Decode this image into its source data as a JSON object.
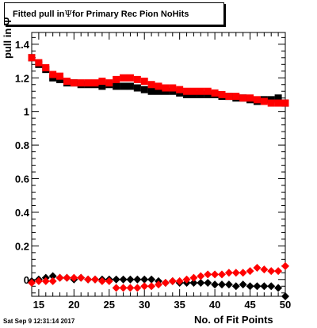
{
  "title": {
    "prefix": "Fitted pull in ",
    "symbol": "Ψ",
    "suffix": " for Primary Rec Pion NoHits"
  },
  "datestamp": "Sat Sep  9 12:31:14 2017",
  "chart_data": {
    "type": "scatter",
    "title": "Fitted pull in Ψ for Primary Rec Pion NoHits",
    "xlabel": "No. of Fit Points",
    "ylabel": "pull in Ψ",
    "xlim": [
      14,
      50
    ],
    "ylim": [
      -0.1,
      1.47
    ],
    "x_ticks": [
      15,
      20,
      25,
      30,
      35,
      40,
      45,
      50
    ],
    "y_ticks": [
      0,
      0.2,
      0.4,
      0.6,
      0.8,
      1,
      1.2,
      1.4
    ],
    "y_tick_labels": [
      "0",
      "0.2",
      "0.4",
      "0.6",
      "0.8",
      "1",
      "1.2",
      "1.4"
    ],
    "grid": false,
    "legend": "none",
    "series": [
      {
        "color": "#000000",
        "marker": "square",
        "x": [
          14,
          15,
          16,
          17,
          18,
          19,
          20,
          21,
          22,
          23,
          24,
          25,
          26,
          27,
          28,
          29,
          30,
          31,
          32,
          33,
          34,
          35,
          36,
          37,
          38,
          39,
          40,
          41,
          42,
          43,
          44,
          45,
          46,
          47,
          48,
          49,
          50
        ],
        "y": [
          1.32,
          1.28,
          1.25,
          1.2,
          1.19,
          1.17,
          1.17,
          1.16,
          1.16,
          1.16,
          1.15,
          1.16,
          1.15,
          1.15,
          1.15,
          1.14,
          1.13,
          1.12,
          1.12,
          1.12,
          1.12,
          1.11,
          1.1,
          1.1,
          1.1,
          1.1,
          1.1,
          1.09,
          1.09,
          1.08,
          1.08,
          1.07,
          1.06,
          1.07,
          1.07,
          1.08,
          1.05
        ]
      },
      {
        "color": "#ff0000",
        "marker": "square",
        "x": [
          14,
          15,
          16,
          17,
          18,
          19,
          20,
          21,
          22,
          23,
          24,
          25,
          26,
          27,
          28,
          29,
          30,
          31,
          32,
          33,
          34,
          35,
          36,
          37,
          38,
          39,
          40,
          41,
          42,
          43,
          44,
          45,
          46,
          47,
          48,
          49,
          50
        ],
        "y": [
          1.32,
          1.29,
          1.26,
          1.22,
          1.21,
          1.18,
          1.17,
          1.17,
          1.17,
          1.17,
          1.18,
          1.17,
          1.19,
          1.2,
          1.2,
          1.19,
          1.18,
          1.16,
          1.15,
          1.14,
          1.14,
          1.13,
          1.12,
          1.12,
          1.12,
          1.12,
          1.11,
          1.1,
          1.09,
          1.09,
          1.08,
          1.08,
          1.07,
          1.06,
          1.05,
          1.05,
          1.05
        ]
      },
      {
        "color": "#000000",
        "marker": "diamond",
        "x": [
          14,
          15,
          16,
          17,
          18,
          19,
          20,
          21,
          22,
          23,
          24,
          25,
          26,
          27,
          28,
          29,
          30,
          31,
          32,
          33,
          34,
          35,
          36,
          37,
          38,
          39,
          40,
          41,
          42,
          43,
          44,
          45,
          46,
          47,
          48,
          49,
          50
        ],
        "y": [
          -0.01,
          0,
          0.01,
          0.02,
          0.01,
          0.01,
          0,
          0.01,
          0,
          0,
          0,
          0,
          0,
          0,
          0,
          0,
          0,
          0,
          -0.01,
          -0.02,
          -0.01,
          -0.02,
          -0.02,
          -0.02,
          -0.02,
          -0.02,
          -0.03,
          -0.03,
          -0.03,
          -0.04,
          -0.03,
          -0.04,
          -0.04,
          -0.04,
          -0.04,
          -0.05,
          -0.1
        ]
      },
      {
        "color": "#ff0000",
        "marker": "diamond",
        "x": [
          14,
          15,
          16,
          17,
          18,
          19,
          20,
          21,
          22,
          23,
          24,
          25,
          26,
          27,
          28,
          29,
          30,
          31,
          32,
          33,
          34,
          35,
          36,
          37,
          38,
          39,
          40,
          41,
          42,
          43,
          44,
          45,
          46,
          47,
          48,
          49,
          50
        ],
        "y": [
          -0.02,
          -0.01,
          -0.01,
          -0.01,
          0.01,
          0.01,
          0.01,
          0.01,
          0,
          0,
          -0.01,
          -0.01,
          -0.05,
          -0.05,
          -0.05,
          -0.05,
          -0.04,
          -0.04,
          -0.03,
          -0.02,
          -0.01,
          -0.01,
          0,
          0.01,
          0.02,
          0.03,
          0.03,
          0.03,
          0.04,
          0.04,
          0.04,
          0.05,
          0.07,
          0.06,
          0.05,
          0.05,
          0.08
        ]
      }
    ]
  }
}
